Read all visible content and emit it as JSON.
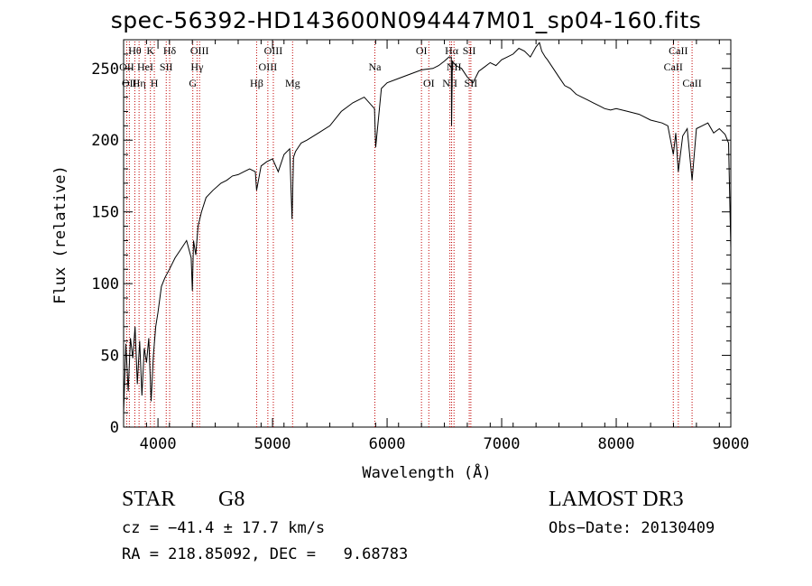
{
  "chart_data": {
    "type": "line",
    "title": "spec-56392-HD143600N094447M01_sp04-160.fits",
    "xlabel": "Wavelength (Å)",
    "ylabel": "Flux (relative)",
    "xlim": [
      3700,
      9000
    ],
    "ylim": [
      0,
      270
    ],
    "xticks": [
      4000,
      5000,
      6000,
      7000,
      8000,
      9000
    ],
    "yticks": [
      0,
      50,
      100,
      150,
      200,
      250
    ],
    "series": [
      {
        "name": "flux",
        "x": [
          3700,
          3720,
          3740,
          3760,
          3780,
          3800,
          3820,
          3840,
          3860,
          3880,
          3900,
          3920,
          3940,
          3960,
          3980,
          4000,
          4030,
          4060,
          4100,
          4150,
          4200,
          4250,
          4290,
          4300,
          4310,
          4330,
          4350,
          4380,
          4420,
          4480,
          4550,
          4600,
          4650,
          4700,
          4750,
          4800,
          4850,
          4861,
          4900,
          4950,
          5000,
          5050,
          5100,
          5150,
          5170,
          5183,
          5200,
          5250,
          5300,
          5400,
          5500,
          5600,
          5700,
          5800,
          5890,
          5900,
          5950,
          6000,
          6100,
          6200,
          6300,
          6400,
          6450,
          6500,
          6540,
          6560,
          6563,
          6570,
          6600,
          6650,
          6700,
          6750,
          6800,
          6850,
          6900,
          6950,
          7000,
          7050,
          7100,
          7150,
          7200,
          7250,
          7300,
          7330,
          7350,
          7380,
          7400,
          7450,
          7500,
          7550,
          7600,
          7650,
          7700,
          7750,
          7800,
          7850,
          7900,
          7950,
          8000,
          8100,
          8200,
          8300,
          8400,
          8450,
          8498,
          8520,
          8542,
          8580,
          8620,
          8662,
          8700,
          8750,
          8800,
          8850,
          8900,
          8950,
          8980,
          9000
        ],
        "y": [
          10,
          58,
          25,
          62,
          48,
          70,
          30,
          60,
          22,
          55,
          45,
          62,
          18,
          50,
          70,
          80,
          98,
          104,
          110,
          118,
          124,
          130,
          118,
          95,
          130,
          120,
          140,
          150,
          160,
          165,
          170,
          172,
          175,
          176,
          178,
          180,
          178,
          165,
          182,
          185,
          187,
          178,
          190,
          194,
          145,
          188,
          192,
          198,
          200,
          205,
          210,
          220,
          226,
          230,
          222,
          195,
          236,
          240,
          243,
          246,
          249,
          250,
          252,
          255,
          258,
          258,
          210,
          255,
          252,
          250,
          244,
          240,
          248,
          251,
          254,
          252,
          256,
          258,
          260,
          264,
          262,
          258,
          265,
          268,
          262,
          258,
          256,
          250,
          244,
          238,
          236,
          232,
          230,
          228,
          226,
          224,
          222,
          221,
          222,
          220,
          218,
          214,
          212,
          210,
          190,
          205,
          178,
          203,
          208,
          172,
          208,
          210,
          212,
          205,
          208,
          204,
          198,
          125
        ]
      }
    ],
    "line_markers": [
      {
        "wavelength": 3727,
        "label": "OII",
        "row": 1
      },
      {
        "wavelength": 3750,
        "label": "OII",
        "row": 2
      },
      {
        "wavelength": 3798,
        "label": "Hθ",
        "row": 0
      },
      {
        "wavelength": 3835,
        "label": "Hη",
        "row": 2
      },
      {
        "wavelength": 3889,
        "label": "HeI",
        "row": 1
      },
      {
        "wavelength": 3934,
        "label": "K",
        "row": 0
      },
      {
        "wavelength": 3968,
        "label": "H",
        "row": 2
      },
      {
        "wavelength": 4072,
        "label": "SII",
        "row": 1
      },
      {
        "wavelength": 4102,
        "label": "Hδ",
        "row": 0
      },
      {
        "wavelength": 4304,
        "label": "G",
        "row": 2
      },
      {
        "wavelength": 4341,
        "label": "Hγ",
        "row": 1
      },
      {
        "wavelength": 4363,
        "label": "OIII",
        "row": 0
      },
      {
        "wavelength": 4861,
        "label": "Hβ",
        "row": 2
      },
      {
        "wavelength": 4959,
        "label": "OIII",
        "row": 1
      },
      {
        "wavelength": 5007,
        "label": "OIII",
        "row": 0
      },
      {
        "wavelength": 5175,
        "label": "Mg",
        "row": 2
      },
      {
        "wavelength": 5893,
        "label": "Na",
        "row": 1
      },
      {
        "wavelength": 6300,
        "label": "OI",
        "row": 0
      },
      {
        "wavelength": 6364,
        "label": "OI",
        "row": 2
      },
      {
        "wavelength": 6548,
        "label": "NII",
        "row": 2
      },
      {
        "wavelength": 6563,
        "label": "Hα",
        "row": 0
      },
      {
        "wavelength": 6584,
        "label": "NII",
        "row": 1
      },
      {
        "wavelength": 6717,
        "label": "SII",
        "row": 0
      },
      {
        "wavelength": 6731,
        "label": "SII",
        "row": 2
      },
      {
        "wavelength": 8498,
        "label": "CaII",
        "row": 1
      },
      {
        "wavelength": 8542,
        "label": "CaII",
        "row": 0
      },
      {
        "wavelength": 8662,
        "label": "CaII",
        "row": 2
      }
    ]
  },
  "info": {
    "class": "STAR",
    "subclass": "G8",
    "survey": "LAMOST DR3",
    "cz": "cz = −41.4 ± 17.7 km/s",
    "obs_date": "Obs−Date: 20130409",
    "radec": "RA = 218.85092, DEC =   9.68783"
  }
}
